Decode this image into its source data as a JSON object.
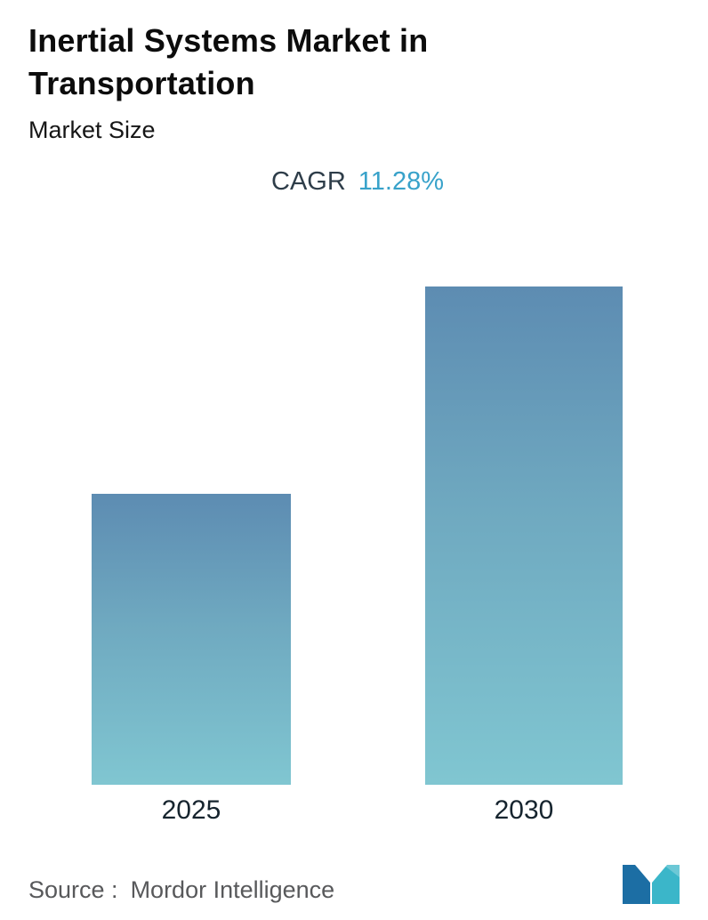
{
  "header": {
    "title_line1": "Inertial Systems Market in",
    "title_line2": "Transportation",
    "subtitle": "Market Size",
    "cagr_label": "CAGR",
    "cagr_value": "11.28%"
  },
  "chart_data": {
    "type": "bar",
    "title": "Inertial Systems Market in Transportation",
    "subtitle": "Market Size",
    "categories": [
      "2025",
      "2030"
    ],
    "values": [
      1.0,
      1.71
    ],
    "value_note": "relative market size (no y-axis values shown); 2030 implied by CAGR 11.28% over 5 years",
    "cagr": "11.28%",
    "xlabel": "",
    "ylabel": "",
    "grid": false,
    "legend": false,
    "bar_gradient_top": "#5d8cb2",
    "bar_gradient_bottom": "#80c6d1"
  },
  "footer": {
    "source_label": "Source :",
    "source_value": "Mordor Intelligence"
  },
  "colors": {
    "cagr_value": "#38a2ca",
    "cagr_label": "#2e3d49",
    "title": "#0c0c0c",
    "source_text": "#58595b",
    "logo_dark": "#1c6ea4",
    "logo_teal": "#3bb6c9"
  }
}
